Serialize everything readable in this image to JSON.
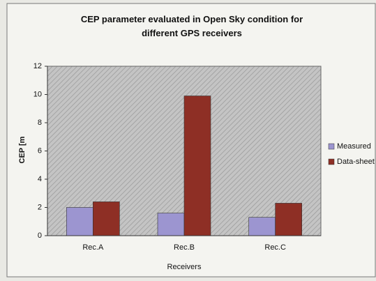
{
  "chart_data": {
    "type": "bar",
    "title": "CEP parameter evaluated in Open Sky condition for different GPS receivers",
    "x_label": "Receivers",
    "y_label": "CEP [m",
    "categories": [
      "Rec.A",
      "Rec.B",
      "Rec.C"
    ],
    "series": [
      {
        "name": "Measured",
        "color": "#9c95d0",
        "values": [
          2.0,
          1.6,
          1.3
        ]
      },
      {
        "name": "Data-sheet",
        "color": "#8e2f25",
        "values": [
          2.4,
          9.9,
          2.3
        ]
      }
    ],
    "ylim": [
      0,
      12
    ],
    "yticks": [
      0,
      2,
      4,
      6,
      8,
      10,
      12
    ],
    "grid": false,
    "legend": "right"
  }
}
